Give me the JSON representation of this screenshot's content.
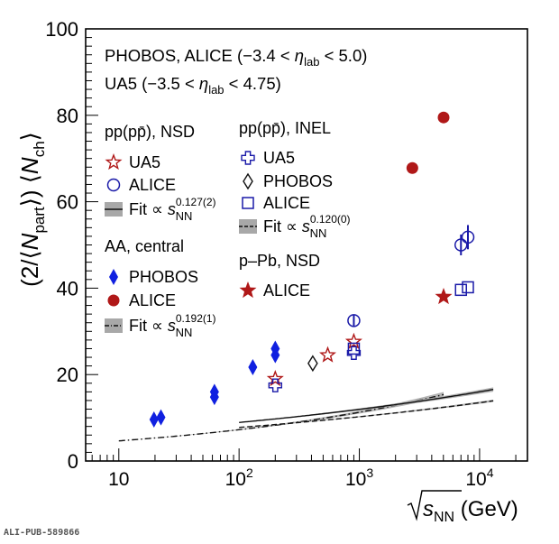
{
  "chart_data": {
    "type": "scatter",
    "x_scale": "log",
    "xlim": [
      5.3,
      25000
    ],
    "ylim": [
      0,
      100
    ],
    "yticks": [
      0,
      20,
      40,
      60,
      80,
      100
    ],
    "x_major_ticks": [
      10,
      100,
      1000,
      10000
    ],
    "x_tick_labels": [
      {
        "base": "10",
        "exp": ""
      },
      {
        "base": "10",
        "exp": "2"
      },
      {
        "base": "10",
        "exp": "3"
      },
      {
        "base": "10",
        "exp": "4"
      }
    ],
    "xlabel": {
      "root": "s",
      "sub": "NN",
      "unit": "(GeV)"
    },
    "ylabel": {
      "pre": "(2/⟨",
      "N": "N",
      "sub": "part",
      "mid": "⟩) ⟨",
      "N2": "N",
      "sub2": "ch",
      "post": "⟩"
    },
    "header_lines": [
      {
        "text": "PHOBOS, ALICE (−3.4 < ",
        "eta": "η",
        "sub": "lab",
        "post": " < 5.0)"
      },
      {
        "text": "UA5 (−3.5 < ",
        "eta": "η",
        "sub": "lab",
        "post": " < 4.75)"
      }
    ],
    "legend_groups": [
      {
        "title": "pp(pp̄), NSD",
        "entries": [
          {
            "marker": "star-open",
            "color": "#b01818",
            "label": "UA5"
          },
          {
            "marker": "circle-open",
            "color": "#1a1aa8",
            "label": "ALICE"
          },
          {
            "marker": "band-solid",
            "color": "#111111",
            "label": "Fit ∝ s",
            "sub": "NN",
            "sup": "0.127(2)"
          }
        ]
      },
      {
        "title": "AA, central",
        "entries": [
          {
            "marker": "diamond-filled",
            "color": "#1020e0",
            "label": "PHOBOS"
          },
          {
            "marker": "circle-filled",
            "color": "#b01818",
            "label": "ALICE"
          },
          {
            "marker": "band-dashdot",
            "color": "#111111",
            "label": "Fit ∝ s",
            "sub": "NN",
            "sup": "0.192(1)"
          }
        ]
      },
      {
        "title": "pp(pp̄), INEL",
        "entries": [
          {
            "marker": "cross-open",
            "color": "#1a1aa8",
            "label": "UA5"
          },
          {
            "marker": "diamond-open",
            "color": "#111111",
            "label": "PHOBOS"
          },
          {
            "marker": "square-open",
            "color": "#1a1aa8",
            "label": "ALICE"
          },
          {
            "marker": "band-dashed",
            "color": "#111111",
            "label": "Fit ∝ s",
            "sub": "NN",
            "sup": "0.120(0)"
          }
        ]
      },
      {
        "title": "p–Pb, NSD",
        "entries": [
          {
            "marker": "star-filled",
            "color": "#b01818",
            "label": "ALICE"
          }
        ]
      }
    ],
    "series": [
      {
        "name": "PHOBOS",
        "group": "AA, central",
        "marker": "diamond-filled",
        "color": "#1020e0",
        "points": [
          [
            19.6,
            9.6
          ],
          [
            22.4,
            10.1
          ],
          [
            62.4,
            14.8
          ],
          [
            62.4,
            16.0
          ],
          [
            130,
            21.7
          ],
          [
            200,
            24.5
          ],
          [
            200,
            26.0
          ]
        ]
      },
      {
        "name": "ALICE",
        "group": "AA, central",
        "marker": "circle-filled",
        "color": "#b01818",
        "points": [
          [
            2760,
            67.8
          ],
          [
            5020,
            79.5
          ]
        ]
      },
      {
        "name": "UA5",
        "group": "pp(pp̄), NSD",
        "marker": "star-open",
        "color": "#b01818",
        "points": [
          [
            200,
            19.0
          ],
          [
            546,
            24.5
          ],
          [
            900,
            27.6
          ]
        ]
      },
      {
        "name": "ALICE",
        "group": "pp(pp̄), NSD",
        "marker": "circle-open",
        "color": "#1a1aa8",
        "points": [
          [
            900,
            32.5,
            1.4
          ],
          [
            7000,
            50.0,
            2.4
          ],
          [
            8000,
            51.8,
            2.8
          ]
        ]
      },
      {
        "name": "UA5",
        "group": "pp(pp̄), INEL",
        "marker": "cross-open",
        "color": "#1a1aa8",
        "points": [
          [
            200,
            17.5
          ],
          [
            900,
            25.0
          ]
        ]
      },
      {
        "name": "PHOBOS",
        "group": "pp(pp̄), INEL",
        "marker": "diamond-open",
        "color": "#111111",
        "points": [
          [
            410,
            22.6
          ]
        ]
      },
      {
        "name": "ALICE",
        "group": "pp(pp̄), INEL",
        "marker": "square-open",
        "color": "#1a1aa8",
        "points": [
          [
            900,
            26.0
          ],
          [
            7000,
            39.6
          ],
          [
            8000,
            40.2
          ]
        ]
      },
      {
        "name": "ALICE",
        "group": "p–Pb, NSD",
        "marker": "star-filled",
        "color": "#b01818",
        "points": [
          [
            5020,
            38.0
          ]
        ]
      }
    ],
    "fits": [
      {
        "style": "dashdot",
        "a": 2.995,
        "b": 0.192,
        "xmin": 10,
        "xmax": 5020,
        "band": 1.2
      },
      {
        "style": "solid",
        "a": 4.97,
        "b": 0.127,
        "xmin": 100,
        "xmax": 13000,
        "band": 0.8
      },
      {
        "style": "dashed",
        "a": 4.47,
        "b": 0.12,
        "xmin": 100,
        "xmax": 13000,
        "band": 0.5
      }
    ]
  },
  "footer": "ALI-PUB-589866"
}
